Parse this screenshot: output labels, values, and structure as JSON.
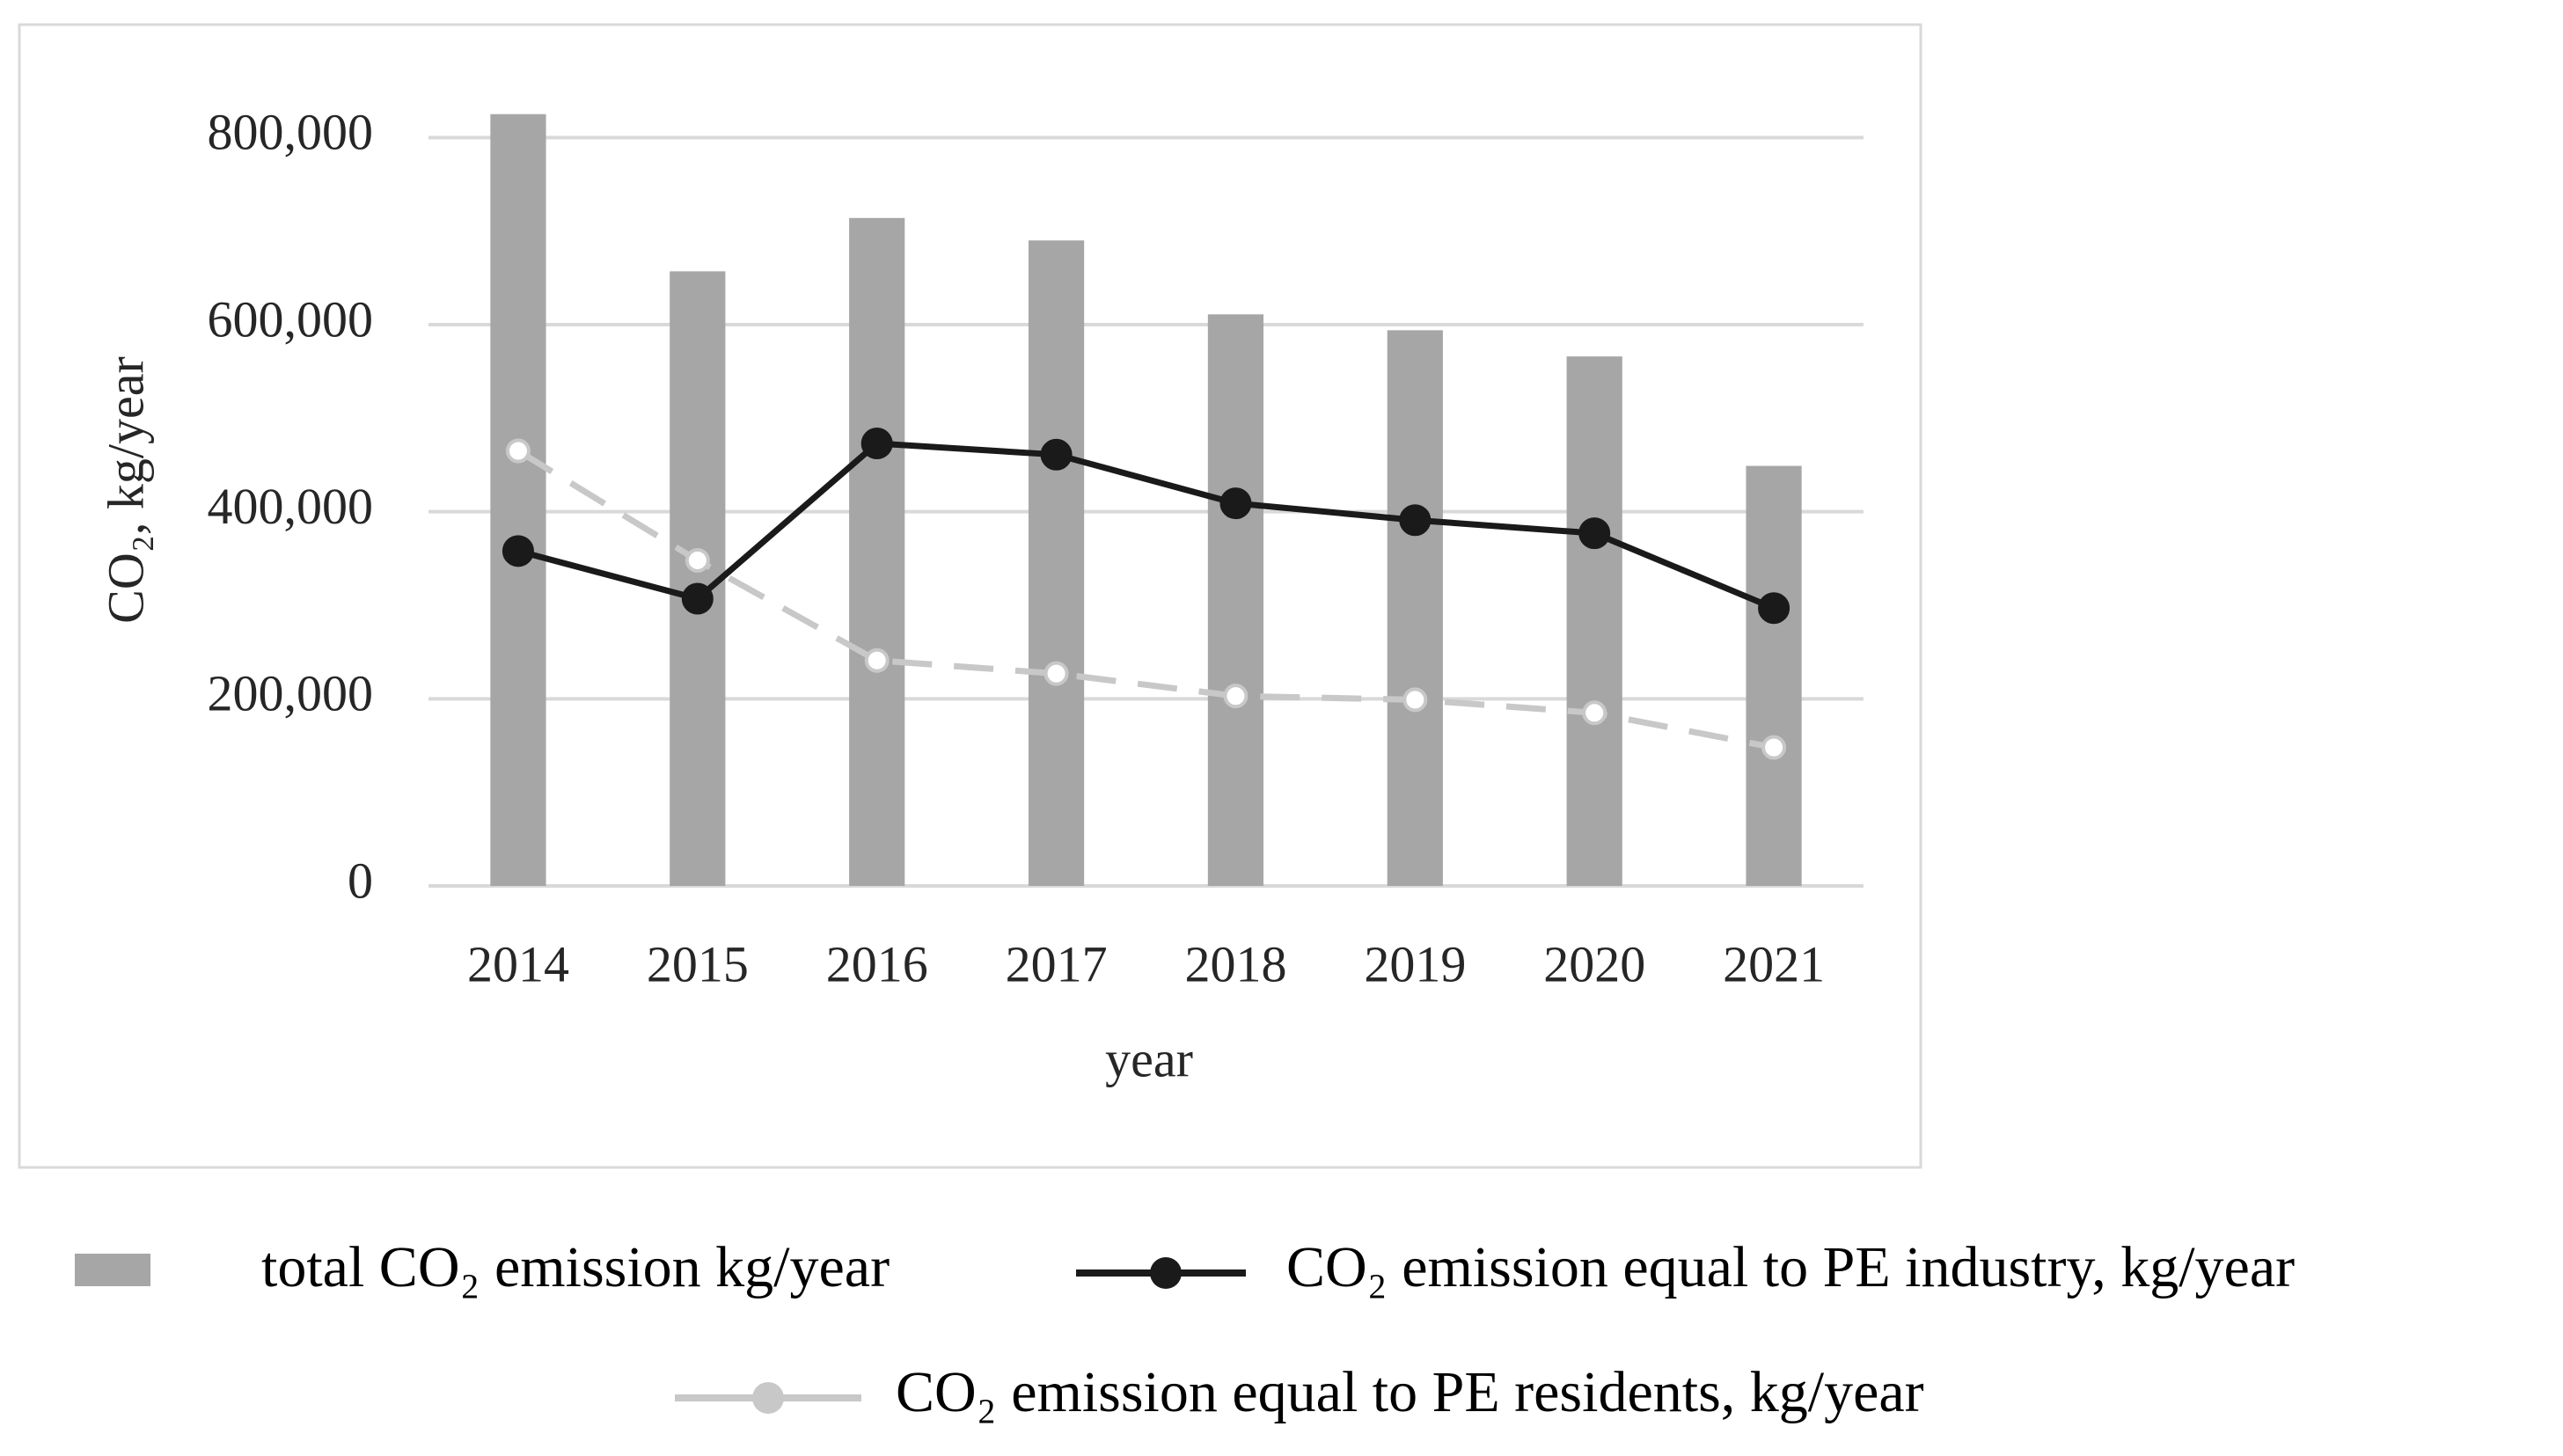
{
  "chart_data": {
    "type": "bar-line",
    "x_label": "year",
    "y_label": "CO₂, kg/year",
    "categories": [
      "2014",
      "2015",
      "2016",
      "2017",
      "2018",
      "2019",
      "2020",
      "2021"
    ],
    "series": [
      {
        "name": "total CO₂ emission kg/year",
        "type": "bar",
        "color": "#a6a6a6",
        "values": [
          825000,
          657000,
          714000,
          690000,
          611000,
          594000,
          566000,
          449000
        ]
      },
      {
        "name": "CO₂ emission equal to PE industry, kg/year",
        "type": "line",
        "color": "#1a1a1a",
        "values": [
          358000,
          307000,
          473000,
          461000,
          409000,
          391000,
          377000,
          297000
        ]
      },
      {
        "name": "CO₂ emission equal to PE residents, kg/year",
        "type": "line",
        "dashed": true,
        "color": "#c8c8c8",
        "values": [
          465000,
          348000,
          241000,
          227000,
          203000,
          199000,
          185000,
          148000
        ]
      }
    ],
    "ylim": [
      0,
      900000
    ],
    "yticks": [
      0,
      {
        "value": 200000,
        "label": "200,000"
      },
      {
        "value": 400000,
        "label": "400,000"
      },
      {
        "value": 600000,
        "label": "600,000"
      },
      {
        "value": 800000,
        "label": "800,000"
      }
    ],
    "grid": true
  }
}
